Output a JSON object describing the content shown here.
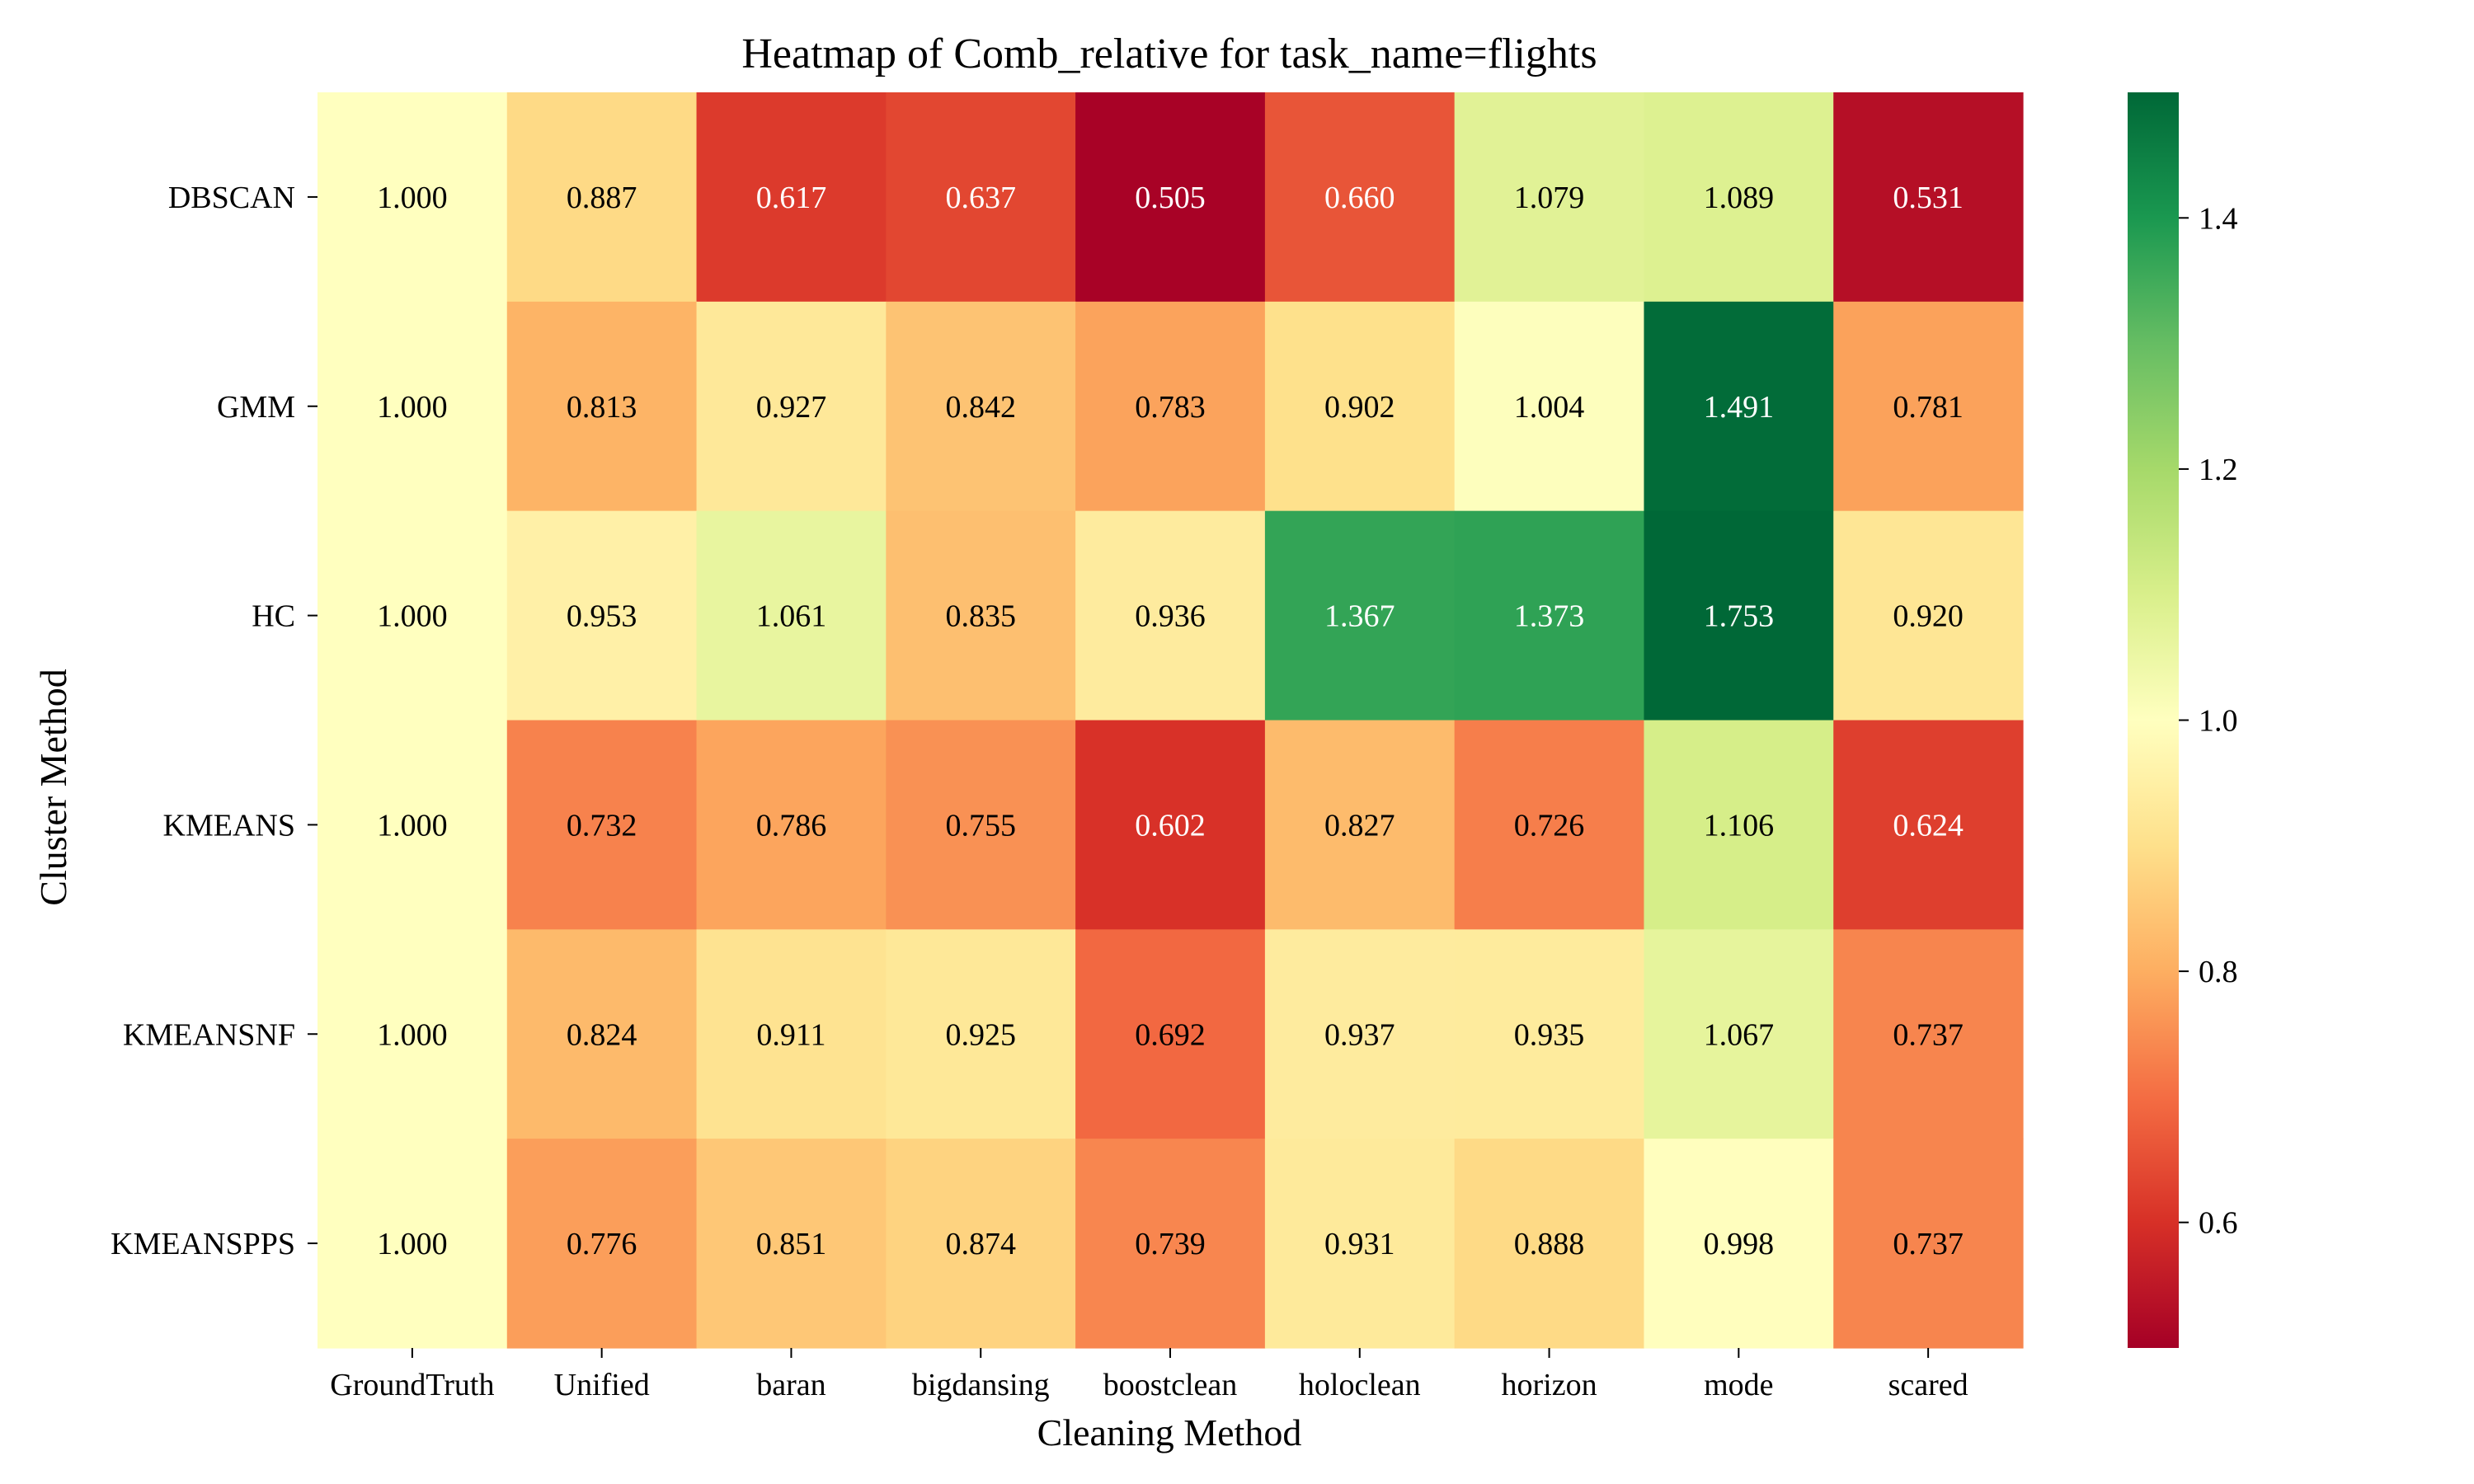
{
  "chart_data": {
    "type": "heatmap",
    "title": "Heatmap of Comb_relative for task_name=flights",
    "xlabel": "Cleaning Method",
    "ylabel": "Cluster Method",
    "x_categories": [
      "GroundTruth",
      "Unified",
      "baran",
      "bigdansing",
      "boostclean",
      "holoclean",
      "horizon",
      "mode",
      "scared"
    ],
    "y_categories": [
      "DBSCAN",
      "GMM",
      "HC",
      "KMEANS",
      "KMEANSNF",
      "KMEANSPPS"
    ],
    "values": [
      [
        1.0,
        0.887,
        0.617,
        0.637,
        0.505,
        0.66,
        1.079,
        1.089,
        0.531
      ],
      [
        1.0,
        0.813,
        0.927,
        0.842,
        0.783,
        0.902,
        1.004,
        1.491,
        0.781
      ],
      [
        1.0,
        0.953,
        1.061,
        0.835,
        0.936,
        1.367,
        1.373,
        1.753,
        0.92
      ],
      [
        1.0,
        0.732,
        0.786,
        0.755,
        0.602,
        0.827,
        0.726,
        1.106,
        0.624
      ],
      [
        1.0,
        0.824,
        0.911,
        0.925,
        0.692,
        0.937,
        0.935,
        1.067,
        0.737
      ],
      [
        1.0,
        0.776,
        0.851,
        0.874,
        0.739,
        0.931,
        0.888,
        0.998,
        0.737
      ]
    ],
    "value_format": "3 decimals",
    "colormap": "RdYlGn",
    "color_range": [
      0.5,
      1.5
    ],
    "colorbar": {
      "ticks": [
        0.6,
        0.8,
        1.0,
        1.2,
        1.4
      ],
      "tick_labels": [
        "0.6",
        "0.8",
        "1.0",
        "1.2",
        "1.4"
      ]
    },
    "grid": false,
    "legend": "colorbar-right"
  }
}
